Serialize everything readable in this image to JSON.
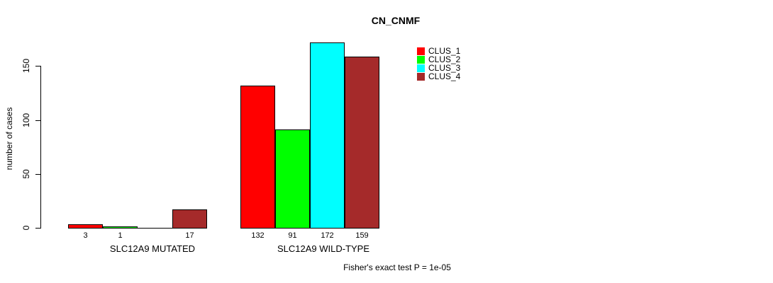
{
  "chart_data": {
    "type": "bar",
    "title": "CN_CNMF",
    "ylabel": "number of cases",
    "xlabel": "",
    "groups": [
      "SLC12A9 MUTATED",
      "SLC12A9 WILD-TYPE"
    ],
    "series": [
      {
        "name": "CLUS_1",
        "color": "#ff0000",
        "values": [
          3,
          132
        ]
      },
      {
        "name": "CLUS_2",
        "color": "#00ff00",
        "values": [
          1,
          91
        ]
      },
      {
        "name": "CLUS_3",
        "color": "#00ffff",
        "values": [
          0,
          172
        ]
      },
      {
        "name": "CLUS_4",
        "color": "#a52a2a",
        "values": [
          17,
          159
        ]
      }
    ],
    "bar_value_labels": [
      [
        "3",
        "1",
        "",
        "17"
      ],
      [
        "132",
        "91",
        "172",
        "159"
      ]
    ],
    "y_axis": {
      "ticks": [
        0,
        50,
        100,
        150
      ]
    },
    "ylim": [
      0,
      172
    ],
    "grid": false,
    "legend_position": "top-right",
    "bar_border_color": "#000000",
    "background": "#ffffff",
    "footer": "Fisher's exact test P = 1e-05"
  }
}
